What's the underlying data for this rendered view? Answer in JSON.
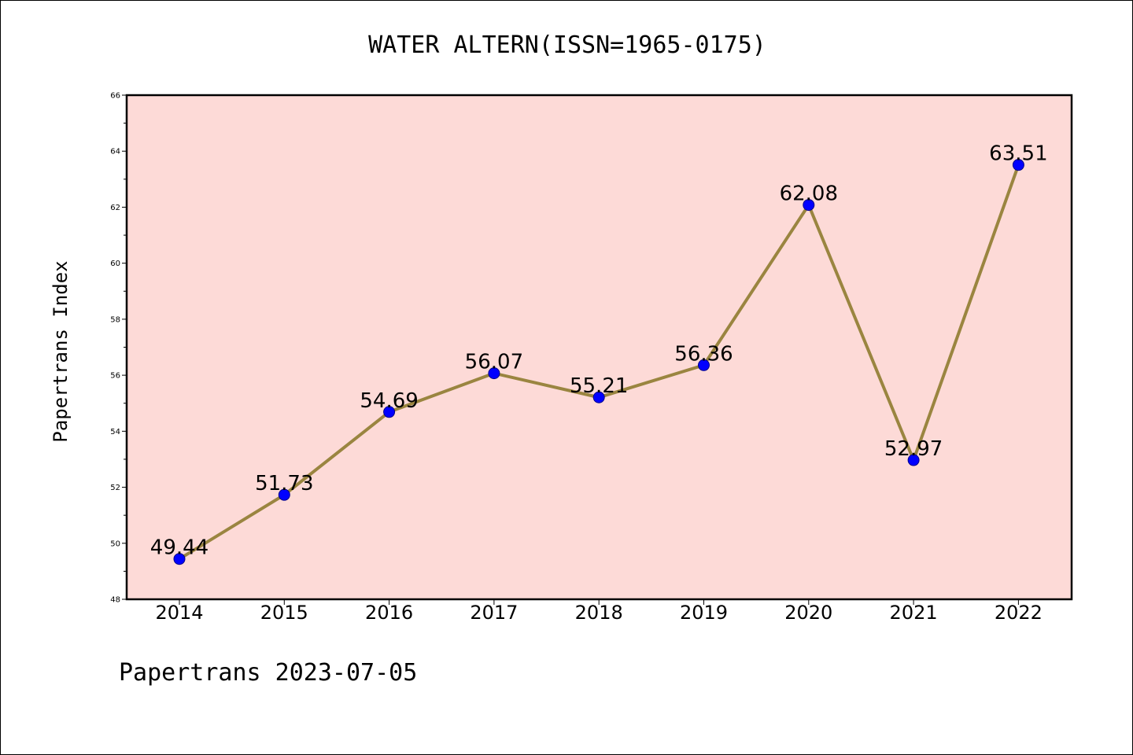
{
  "chart_data": {
    "type": "line",
    "title": "WATER ALTERN(ISSN=1965-0175)",
    "xlabel": "",
    "ylabel": "Papertrans Index",
    "x": [
      "2014",
      "2015",
      "2016",
      "2017",
      "2018",
      "2019",
      "2020",
      "2021",
      "2022"
    ],
    "values": [
      49.44,
      51.73,
      54.69,
      56.07,
      55.21,
      56.36,
      62.08,
      52.97,
      63.51
    ],
    "value_labels": [
      "49.44",
      "51.73",
      "54.69",
      "56.07",
      "55.21",
      "56.36",
      "62.08",
      "52.97",
      "63.51"
    ],
    "ylim": [
      48,
      66
    ],
    "yticks": [
      "48",
      "50",
      "52",
      "54",
      "56",
      "58",
      "60",
      "62",
      "64",
      "66"
    ],
    "grid": false,
    "footer": "Papertrans 2023-07-05"
  },
  "colors": {
    "plot_background": "#fddad7",
    "line": "#9a8540",
    "marker": "#0000ff",
    "marker_edge": "#00008b"
  }
}
